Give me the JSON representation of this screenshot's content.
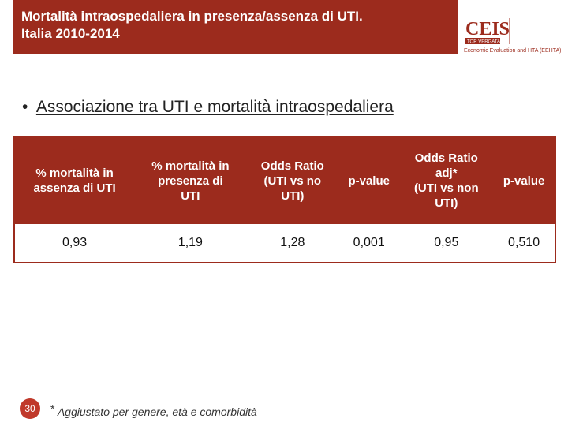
{
  "header": {
    "title": [
      "Mortalità intraospedaliera in presenza/assenza di UTI.",
      "Italia 2010-2014"
    ]
  },
  "logo": {
    "name": "CEIS",
    "university": "TOR VERGATA",
    "unit": "Economic Evaluation and HTA (EEHTA)"
  },
  "bullet": "Associazione tra UTI e mortalità intraospedaliera",
  "table": {
    "headers": [
      [
        "% mortalità in",
        "assenza di UTI"
      ],
      [
        "% mortalità in",
        "presenza di",
        "UTI"
      ],
      [
        "Odds Ratio",
        "(UTI vs no",
        "UTI)"
      ],
      [
        "p-value"
      ],
      [
        "Odds Ratio",
        "adj*",
        "(UTI vs non",
        "UTI)"
      ],
      [
        "p-value"
      ]
    ],
    "rows": [
      [
        "0,93",
        "1,19",
        "1,28",
        "0,001",
        "0,95",
        "0,510"
      ]
    ]
  },
  "footer": {
    "page": "30",
    "note_mark": "*",
    "note": "Aggiustato per genere, età e comorbidità"
  }
}
